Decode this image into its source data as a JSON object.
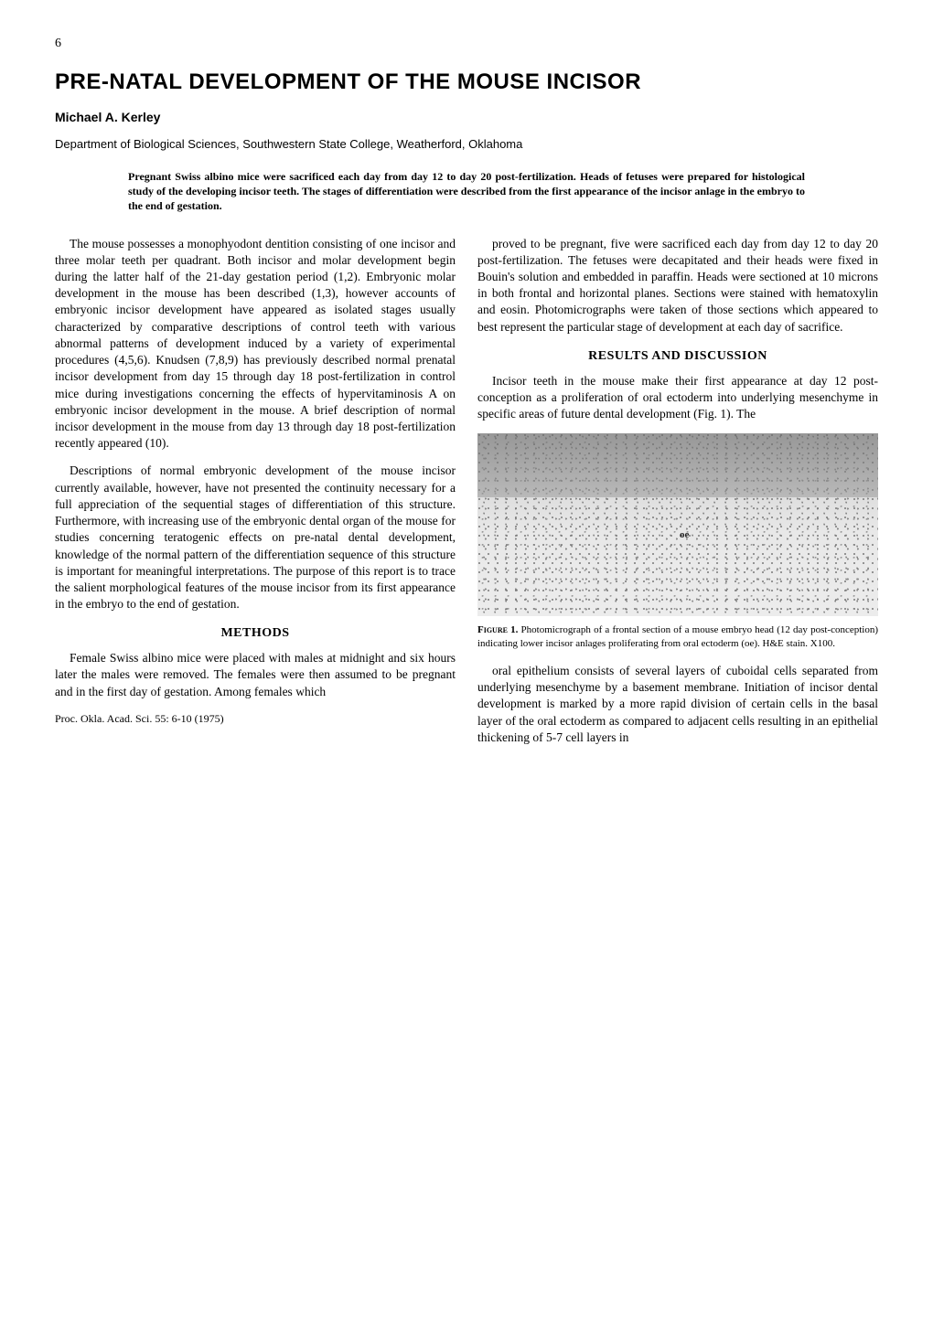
{
  "page_number": "6",
  "title": "PRE-NATAL DEVELOPMENT OF THE MOUSE INCISOR",
  "author": "Michael A. Kerley",
  "affiliation": "Department of Biological Sciences, Southwestern State College, Weatherford, Oklahoma",
  "abstract": "Pregnant Swiss albino mice were sacrificed each day from day 12 to day 20 post-fertilization. Heads of fetuses were prepared for histological study of the developing incisor teeth. The stages of differentiation were described from the first appearance of the incisor anlage in the embryo to the end of gestation.",
  "left_column": {
    "p1": "The mouse possesses a monophyodont dentition consisting of one incisor and three molar teeth per quadrant. Both incisor and molar development begin during the latter half of the 21-day gestation period (1,2). Embryonic molar development in the mouse has been described (1,3), however accounts of embryonic incisor development have appeared as isolated stages usually characterized by comparative descriptions of control teeth with various abnormal patterns of development induced by a variety of experimental procedures (4,5,6). Knudsen (7,8,9) has previously described normal prenatal incisor development from day 15 through day 18 post-fertilization in control mice during investigations concerning the effects of hypervitaminosis A on embryonic incisor development in the mouse. A brief description of normal incisor development in the mouse from day 13 through day 18 post-fertilization recently appeared (10).",
    "p2": "Descriptions of normal embryonic development of the mouse incisor currently available, however, have not presented the continuity necessary for a full appreciation of the sequential stages of differentiation of this structure. Furthermore, with increasing use of the embryonic dental organ of the mouse for studies concerning teratogenic effects on pre-natal dental development, knowledge of the normal pattern of the differentiation sequence of this structure is important for meaningful interpretations. The purpose of this report is to trace the salient morphological features of the mouse incisor from its first appearance in the embryo to the end of gestation.",
    "methods_heading": "METHODS",
    "p3": "Female Swiss albino mice were placed with males at midnight and six hours later the males were removed. The females were then assumed to be pregnant and in the first day of gestation. Among females which",
    "citation": "Proc. Okla. Acad. Sci. 55: 6-10 (1975)"
  },
  "right_column": {
    "p1": "proved to be pregnant, five were sacrificed each day from day 12 to day 20 post-fertilization. The fetuses were decapitated and their heads were fixed in Bouin's solution and embedded in paraffin. Heads were sectioned at 10 microns in both frontal and horizontal planes. Sections were stained with hematoxylin and eosin. Photomicrographs were taken of those sections which appeared to best represent the particular stage of development at each day of sacrifice.",
    "results_heading": "RESULTS AND DISCUSSION",
    "p2": "Incisor teeth in the mouse make their first appearance at day 12 post-conception as a proliferation of oral ectoderm into underlying mesenchyme in specific areas of future dental development (Fig. 1). The",
    "figure_label": "oe",
    "figure_caption_lead": "Figure 1.",
    "figure_caption_body": " Photomicrograph of a frontal section of a mouse embryo head (12 day post-conception) indicating lower incisor anlages proliferating from oral ectoderm (oe). H&E stain. X100.",
    "p3": "oral epithelium consists of several layers of cuboidal cells separated from underlying mesenchyme by a basement membrane. Initiation of incisor dental development is marked by a more rapid division of certain cells in the basal layer of the oral ectoderm as compared to adjacent cells resulting in an epithelial thickening of 5-7 cell layers in"
  }
}
